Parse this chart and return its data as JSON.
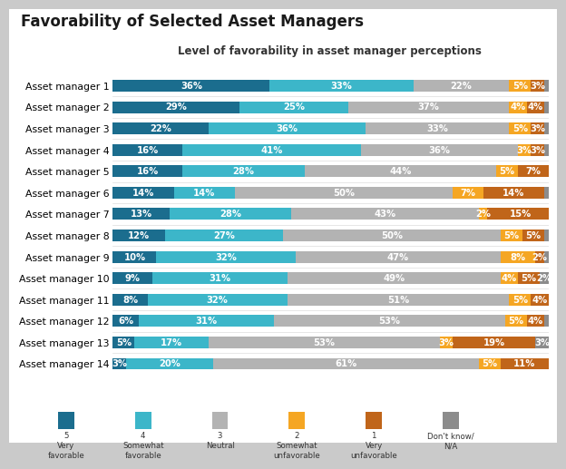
{
  "title": "Favorability of Selected Asset Managers",
  "subtitle": "Level of favorability in asset manager perceptions",
  "categories": [
    "Asset manager 1",
    "Asset manager 2",
    "Asset manager 3",
    "Asset manager 4",
    "Asset manager 5",
    "Asset manager 6",
    "Asset manager 7",
    "Asset manager 8",
    "Asset manager 9",
    "Asset manager 10",
    "Asset manager 11",
    "Asset manager 12",
    "Asset manager 13",
    "Asset manager 14"
  ],
  "series": {
    "5_very_favorable": [
      36,
      29,
      22,
      16,
      16,
      14,
      13,
      12,
      10,
      9,
      8,
      6,
      5,
      3
    ],
    "4_somewhat_favorable": [
      33,
      25,
      36,
      41,
      28,
      14,
      28,
      27,
      32,
      31,
      32,
      31,
      17,
      20
    ],
    "3_neutral": [
      22,
      37,
      33,
      36,
      44,
      50,
      43,
      50,
      47,
      49,
      51,
      53,
      53,
      61
    ],
    "2_somewhat_unfav": [
      5,
      4,
      5,
      3,
      5,
      7,
      2,
      5,
      8,
      4,
      5,
      5,
      3,
      5
    ],
    "1_very_unfav": [
      3,
      4,
      3,
      3,
      7,
      14,
      15,
      5,
      2,
      5,
      4,
      4,
      19,
      11
    ],
    "dont_know": [
      1,
      1,
      1,
      1,
      0,
      1,
      1,
      1,
      1,
      2,
      0,
      1,
      3,
      0
    ]
  },
  "colors": {
    "5_very_favorable": "#1b6d8e",
    "4_somewhat_favorable": "#3cb6c9",
    "3_neutral": "#b3b3b3",
    "2_somewhat_unfav": "#f5a623",
    "1_very_unfav": "#c0651a",
    "dont_know": "#8c8c8c"
  },
  "legend_labels": {
    "5_very_favorable": "5\nVery\nfavorable",
    "4_somewhat_favorable": "4\nSomewhat\nfavorable",
    "3_neutral": "3\nNeutral",
    "2_somewhat_unfav": "2\nSomewhat\nunfavorable",
    "1_very_unfav": "1\nVery\nunfavorable",
    "dont_know": "Don't know/\nN/A"
  },
  "background_outer": "#cacaca",
  "background_inner": "#ffffff",
  "bar_height": 0.55,
  "title_fontsize": 12,
  "subtitle_fontsize": 8.5,
  "label_fontsize": 7.2,
  "axis_fontsize": 7.8
}
